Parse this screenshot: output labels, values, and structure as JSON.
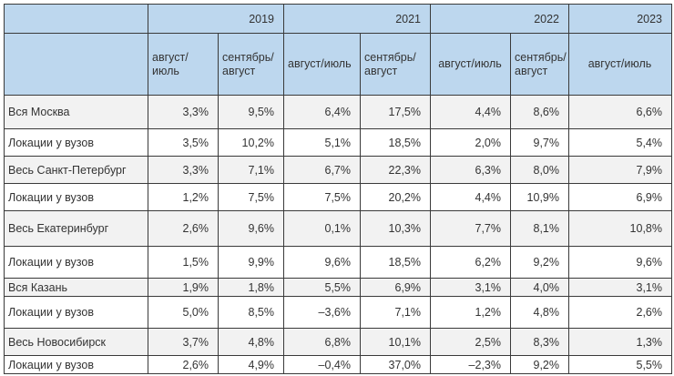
{
  "years": [
    "2019",
    "2021",
    "2022",
    "2023"
  ],
  "subheaders": [
    "август/июль",
    "сентябрь/\nавгуст",
    "август/июль",
    "сентябрь/\nавгуст",
    "август/июль",
    "сентябрь/\nавгуст",
    "август/июль"
  ],
  "rows": [
    {
      "label": "Вся Москва",
      "values": [
        "3,3%",
        "9,5%",
        "6,4%",
        "17,5%",
        "4,4%",
        "8,6%",
        "6,6%"
      ]
    },
    {
      "label": "Локации у вузов",
      "values": [
        "3,5%",
        "10,2%",
        "5,1%",
        "18,5%",
        "2,0%",
        "9,7%",
        "5,4%"
      ]
    },
    {
      "label": "Весь Санкт-Петербург",
      "values": [
        "3,3%",
        "7,1%",
        "6,7%",
        "22,3%",
        "6,3%",
        "8,0%",
        "7,9%"
      ]
    },
    {
      "label": "Локации у вузов",
      "values": [
        "1,2%",
        "7,5%",
        "7,5%",
        "20,2%",
        "4,4%",
        "10,9%",
        "6,9%"
      ]
    },
    {
      "label": "Весь Екатеринбург",
      "values": [
        "2,6%",
        "9,6%",
        "0,1%",
        "10,3%",
        "7,7%",
        "8,1%",
        "10,8%"
      ]
    },
    {
      "label": "Локации у вузов",
      "values": [
        "1,5%",
        "9,9%",
        "9,6%",
        "18,5%",
        "6,2%",
        "9,2%",
        "9,6%"
      ]
    },
    {
      "label": "Вся Казань",
      "values": [
        "1,9%",
        "1,8%",
        "5,5%",
        "6,9%",
        "3,1%",
        "4,0%",
        "3,1%"
      ]
    },
    {
      "label": "Локации у вузов",
      "values": [
        "5,0%",
        "8,5%",
        "–3,6%",
        "7,1%",
        "1,2%",
        "4,8%",
        "2,6%"
      ]
    },
    {
      "label": "Весь Новосибирск",
      "values": [
        "3,7%",
        "4,8%",
        "6,8%",
        "10,1%",
        "2,5%",
        "8,3%",
        "1,3%"
      ]
    },
    {
      "label": "Локации у вузов",
      "values": [
        "2,6%",
        "4,9%",
        "–0,4%",
        "37,0%",
        "–2,3%",
        "9,2%",
        "5,5%"
      ]
    }
  ]
}
